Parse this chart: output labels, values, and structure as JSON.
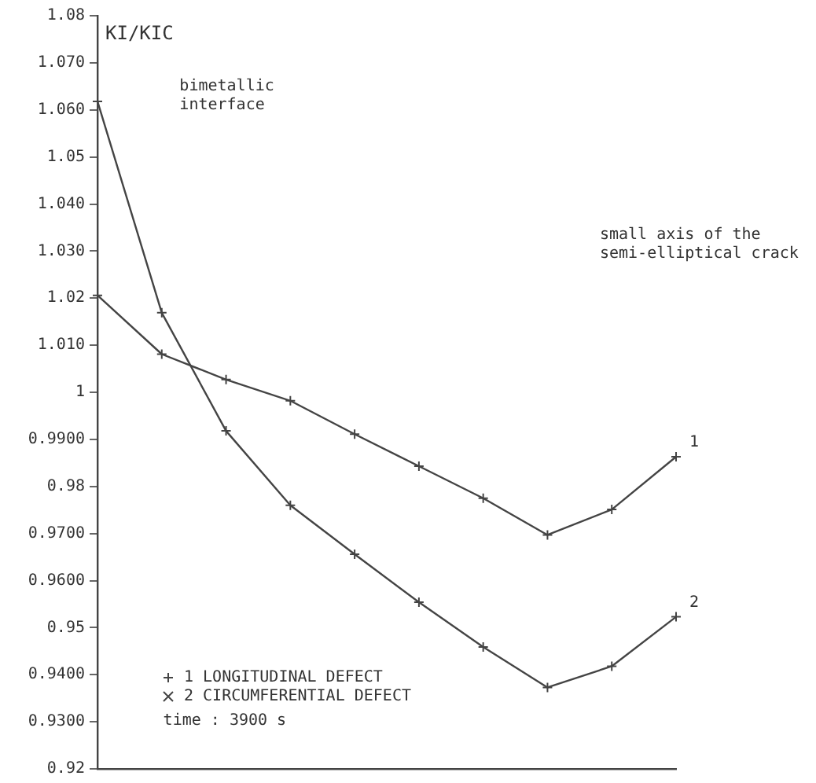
{
  "chart_data": {
    "type": "line",
    "ylabel": "KI/KIC",
    "categories": [
      null,
      null,
      null,
      null,
      null,
      null,
      null,
      null,
      null,
      null
    ],
    "series": [
      {
        "name": "1 LONGITUDINAL DEFECT",
        "color": "#444444",
        "marker": "cross",
        "values": [
          1.0206,
          1.0081,
          1.0027,
          0.9982,
          0.9911,
          0.9843,
          0.9775,
          0.9697,
          0.9751,
          0.9863
        ]
      },
      {
        "name": "2 CIRCUMFERENTIAL DEFECT",
        "color": "#444444",
        "marker": "cross",
        "values": [
          1.0618,
          1.0169,
          0.9918,
          0.976,
          0.9656,
          0.9554,
          0.9459,
          0.9373,
          0.9418,
          0.9523
        ]
      }
    ],
    "ylim": [
      0.92,
      1.08
    ],
    "yticks": [
      {
        "value": 1.08,
        "label": "1.08"
      },
      {
        "value": 1.07,
        "label": "1.070"
      },
      {
        "value": 1.06,
        "label": "1.060"
      },
      1.05,
      {
        "value": 1.04,
        "label": "1.040"
      },
      {
        "value": 1.03,
        "label": "1.030"
      },
      1.02,
      {
        "value": 1.01,
        "label": "1.010"
      },
      1,
      {
        "value": 0.99,
        "label": "0.9900"
      },
      0.98,
      {
        "value": 0.97,
        "label": "0.9700"
      },
      {
        "value": 0.96,
        "label": "0.9600"
      },
      0.95,
      {
        "value": 0.94,
        "label": "0.9400"
      },
      {
        "value": 0.93,
        "label": "0.9300"
      },
      0.92
    ],
    "annotations": [
      "bimetallic\ninterface",
      "small axis of the\nsemi-elliptical crack",
      "time : 3900 s",
      "1",
      "2"
    ],
    "legend": "bottom left",
    "grid": false,
    "line_style": "solid"
  }
}
